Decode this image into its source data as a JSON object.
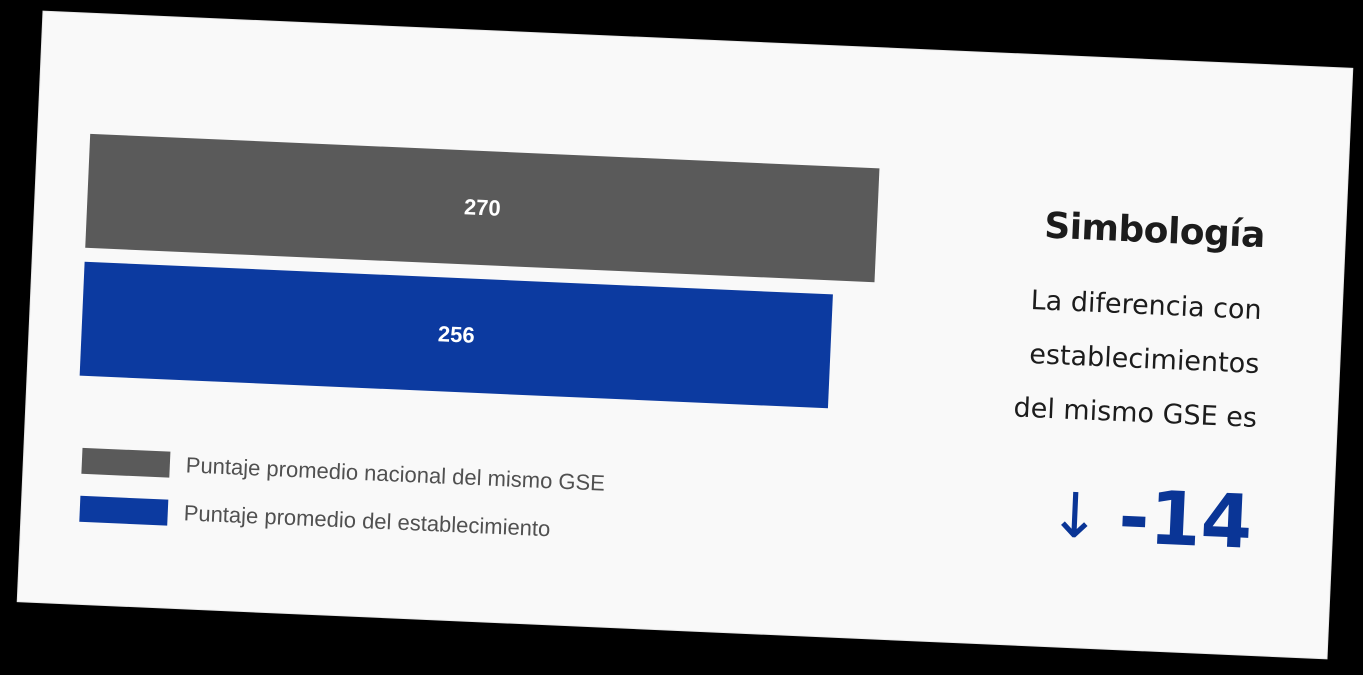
{
  "chart_data": {
    "type": "bar",
    "orientation": "horizontal",
    "categories": [
      "Puntaje promedio nacional del mismo GSE",
      "Puntaje promedio del establecimiento"
    ],
    "values": [
      270,
      256
    ],
    "colors": [
      "#5a5a5a",
      "#0c3aa0"
    ],
    "legend": [
      "Puntaje promedio nacional del mismo GSE",
      "Puntaje promedio del establecimiento"
    ],
    "legend_position": "bottom"
  },
  "symbology": {
    "title": "Simbología",
    "text_lines": [
      "La diferencia con",
      "establecimientos",
      "del mismo GSE es"
    ],
    "arrow": "↓",
    "value": "-14",
    "accent_color": "#0a3596"
  }
}
